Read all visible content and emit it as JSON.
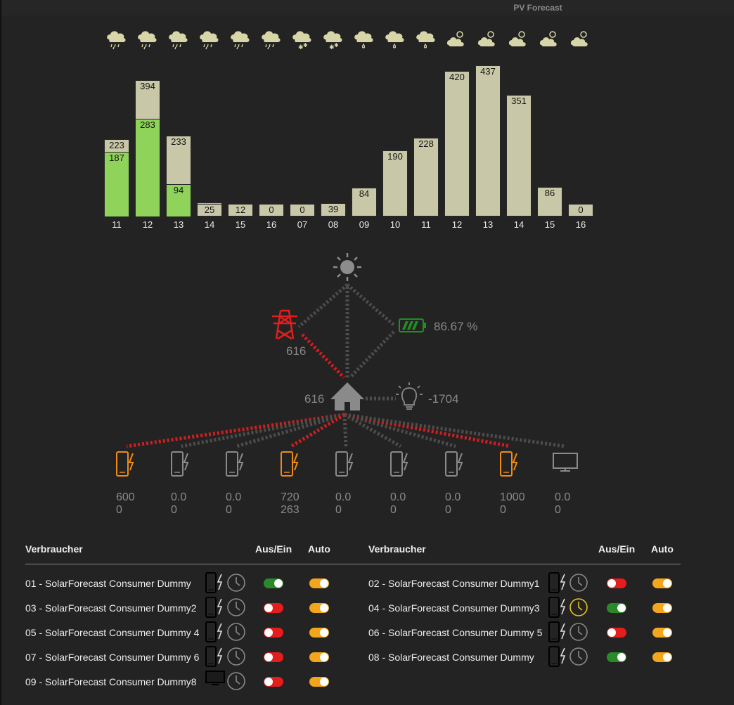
{
  "header": {
    "title": "PV Forecast"
  },
  "weather_icons": [
    "rain",
    "rain",
    "rain",
    "rain",
    "rain",
    "rain",
    "snow",
    "snow",
    "drizzle",
    "drizzle",
    "drizzle",
    "sun-cloud",
    "sun-cloud",
    "sun-cloud",
    "sun-cloud",
    "sun-cloud"
  ],
  "chart_data": {
    "type": "bar",
    "categories": [
      "11",
      "12",
      "13",
      "14",
      "15",
      "16",
      "07",
      "08",
      "09",
      "10",
      "11",
      "12",
      "13",
      "14",
      "15",
      "16"
    ],
    "series": [
      {
        "values": [
          223,
          394,
          233,
          25,
          12,
          0,
          0,
          39,
          84,
          190,
          228,
          420,
          437,
          351,
          86,
          0
        ]
      },
      {
        "values": [
          187,
          283,
          94,
          41,
          null,
          null,
          null,
          null,
          null,
          null,
          null,
          null,
          null,
          null,
          null,
          null
        ]
      }
    ],
    "colors": {
      "forecast": "#c8c7a7",
      "actual": "#8fd35a"
    }
  },
  "flow": {
    "grid_value": "616",
    "battery_value": "86.67 %",
    "house_value": "616",
    "consumption_value": "-1704",
    "colors": {
      "active": "#e01f1f",
      "idle": "#555555",
      "battery": "#1f8f1f",
      "grid_icon": "#e41d1d"
    }
  },
  "consumer_values": [
    {
      "top": "600",
      "bottom": "0"
    },
    {
      "top": "0.0",
      "bottom": "0"
    },
    {
      "top": "0.0",
      "bottom": "0"
    },
    {
      "top": "720",
      "bottom": "263"
    },
    {
      "top": "0.0",
      "bottom": "0"
    },
    {
      "top": "0.0",
      "bottom": "0"
    },
    {
      "top": "0.0",
      "bottom": "0"
    },
    {
      "top": "1000",
      "bottom": "0"
    },
    {
      "top": "0.0",
      "bottom": "0"
    }
  ],
  "table": {
    "headers": {
      "consumer": "Verbraucher",
      "onoff": "Aus/Ein",
      "auto": "Auto"
    },
    "left": [
      {
        "name": "01 - SolarForecast Consumer Dummy",
        "icon": "phone-charging-icon",
        "on": true,
        "auto": true
      },
      {
        "name": "03 - SolarForecast Consumer Dummy2",
        "icon": "phone-charging-icon",
        "on": false,
        "auto": true
      },
      {
        "name": "05 - SolarForecast Consumer Dummy 4",
        "icon": "phone-charging-icon",
        "on": false,
        "auto": true
      },
      {
        "name": "07 - SolarForecast Consumer Dummy 6",
        "icon": "phone-charging-icon",
        "on": false,
        "auto": true
      },
      {
        "name": "09 - SolarForecast Consumer Dummy8",
        "icon": "monitor-icon",
        "on": false,
        "auto": true
      }
    ],
    "right": [
      {
        "name": "02 - SolarForecast Consumer Dummy1",
        "icon": "phone-charging-icon",
        "on": false,
        "auto": true
      },
      {
        "name": "04 - SolarForecast Consumer Dummy3",
        "icon": "phone-charging-icon",
        "on": true,
        "auto": true
      },
      {
        "name": "06 - SolarForecast Consumer Dummy 5",
        "icon": "phone-charging-icon",
        "on": false,
        "auto": true
      },
      {
        "name": "08 - SolarForecast Consumer Dummy",
        "icon": "phone-charging-icon",
        "on": true,
        "auto": true
      }
    ]
  }
}
